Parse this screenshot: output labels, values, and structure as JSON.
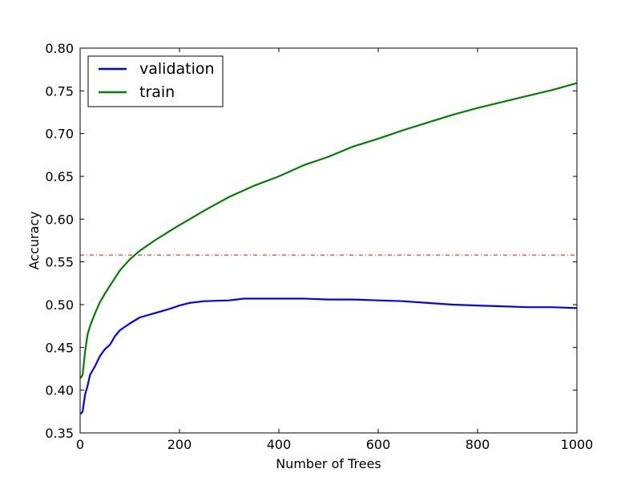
{
  "chart_data": {
    "type": "line",
    "title": "",
    "xlabel": "Number of Trees",
    "ylabel": "Accuracy",
    "xlim": [
      0,
      1000
    ],
    "ylim": [
      0.35,
      0.8
    ],
    "x_ticks": [
      0,
      200,
      400,
      600,
      800,
      1000
    ],
    "x_tick_labels": [
      "0",
      "200",
      "400",
      "600",
      "800",
      "1000"
    ],
    "y_ticks": [
      0.35,
      0.4,
      0.45,
      0.5,
      0.55,
      0.6,
      0.65,
      0.7,
      0.75,
      0.8
    ],
    "y_tick_labels": [
      "0.35",
      "0.40",
      "0.45",
      "0.50",
      "0.55",
      "0.60",
      "0.65",
      "0.70",
      "0.75",
      "0.80"
    ],
    "grid": false,
    "legend_position": "top-left",
    "series": [
      {
        "name": "validation",
        "color": "#0000ff",
        "x": [
          1,
          5,
          10,
          15,
          20,
          30,
          40,
          50,
          60,
          70,
          80,
          100,
          120,
          150,
          180,
          200,
          220,
          250,
          300,
          330,
          350,
          400,
          450,
          500,
          550,
          600,
          650,
          700,
          750,
          800,
          850,
          900,
          950,
          1000
        ],
        "y": [
          0.372,
          0.375,
          0.395,
          0.405,
          0.418,
          0.428,
          0.44,
          0.448,
          0.453,
          0.463,
          0.47,
          0.478,
          0.485,
          0.49,
          0.495,
          0.499,
          0.502,
          0.504,
          0.505,
          0.507,
          0.507,
          0.507,
          0.507,
          0.506,
          0.506,
          0.505,
          0.504,
          0.502,
          0.5,
          0.499,
          0.498,
          0.497,
          0.497,
          0.496
        ]
      },
      {
        "name": "train",
        "color": "#008000",
        "x": [
          1,
          5,
          10,
          15,
          20,
          30,
          40,
          50,
          60,
          70,
          80,
          100,
          120,
          150,
          180,
          200,
          250,
          300,
          350,
          400,
          450,
          500,
          550,
          600,
          650,
          700,
          750,
          800,
          850,
          900,
          950,
          1000
        ],
        "y": [
          0.414,
          0.418,
          0.445,
          0.465,
          0.475,
          0.49,
          0.503,
          0.513,
          0.522,
          0.531,
          0.54,
          0.553,
          0.563,
          0.575,
          0.586,
          0.593,
          0.61,
          0.626,
          0.639,
          0.65,
          0.663,
          0.673,
          0.685,
          0.694,
          0.704,
          0.713,
          0.722,
          0.73,
          0.737,
          0.744,
          0.751,
          0.759
        ]
      }
    ],
    "reference_line": {
      "y": 0.558,
      "color": "#ff0000",
      "style": "dash-dot"
    }
  }
}
